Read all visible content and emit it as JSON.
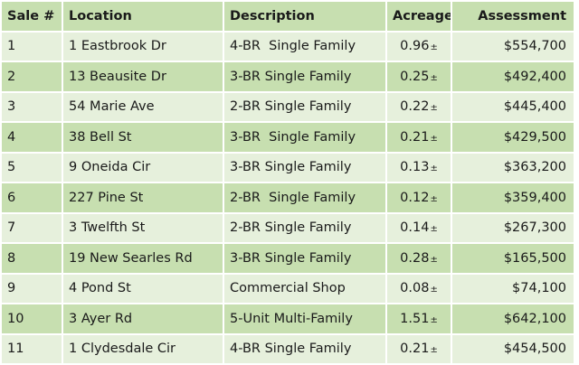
{
  "headers": {
    "sale": "Sale #",
    "location": "Location",
    "description": "Description",
    "acreage": "Acreage",
    "assessment": "Assessment"
  },
  "acreage_suffix": "±",
  "rows": [
    {
      "sale": "1",
      "location": "1 Eastbrook Dr",
      "description": "4-BR  Single Family",
      "acreage": "0.96",
      "assessment": "$554,700"
    },
    {
      "sale": "2",
      "location": "13 Beausite Dr",
      "description": "3-BR Single Family",
      "acreage": "0.25",
      "assessment": "$492,400"
    },
    {
      "sale": "3",
      "location": "54 Marie Ave",
      "description": "2-BR Single Family",
      "acreage": "0.22",
      "assessment": "$445,400"
    },
    {
      "sale": "4",
      "location": "38 Bell St",
      "description": "3-BR  Single Family",
      "acreage": "0.21",
      "assessment": "$429,500"
    },
    {
      "sale": "5",
      "location": "9 Oneida Cir",
      "description": "3-BR Single Family",
      "acreage": "0.13",
      "assessment": "$363,200"
    },
    {
      "sale": "6",
      "location": "227 Pine St",
      "description": "2-BR  Single Family",
      "acreage": "0.12",
      "assessment": "$359,400"
    },
    {
      "sale": "7",
      "location": "3 Twelfth St",
      "description": "2-BR Single Family",
      "acreage": "0.14",
      "assessment": "$267,300"
    },
    {
      "sale": "8",
      "location": "19 New Searles Rd",
      "description": "3-BR Single Family",
      "acreage": "0.28",
      "assessment": "$165,500"
    },
    {
      "sale": "9",
      "location": "4 Pond St",
      "description": "Commercial Shop",
      "acreage": "0.08",
      "assessment": "$74,100"
    },
    {
      "sale": "10",
      "location": "3 Ayer Rd",
      "description": "5-Unit Multi-Family",
      "acreage": "1.51",
      "assessment": "$642,100"
    },
    {
      "sale": "11",
      "location": "1 Clydesdale Cir",
      "description": "4-BR Single Family",
      "acreage": "0.21",
      "assessment": "$454,500"
    }
  ]
}
